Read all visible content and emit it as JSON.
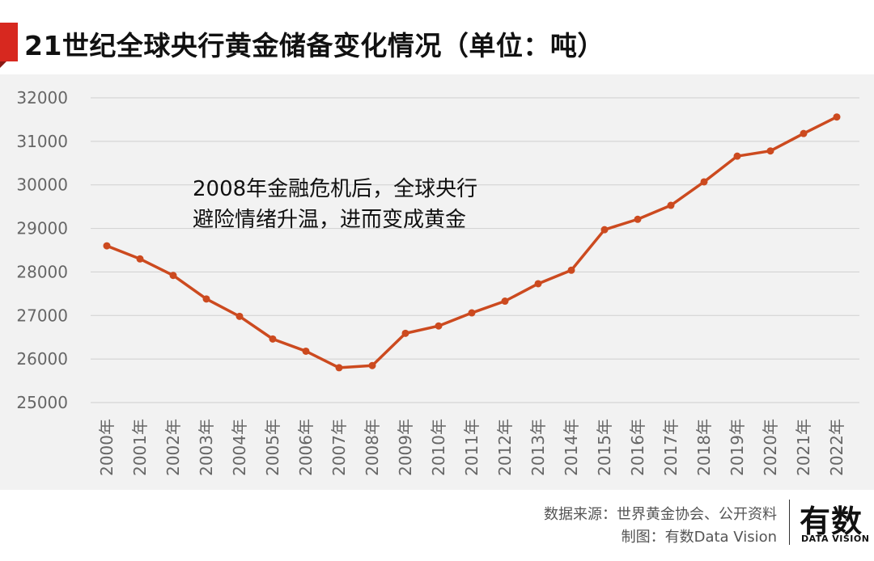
{
  "title": "21世纪全球央行黄金储备变化情况（单位：吨）",
  "annotation": {
    "line1": "2008年金融危机后，全球央行",
    "line2": "避险情绪升温，进而变成黄金"
  },
  "footer": {
    "source": "数据来源：世界黄金协会、公开资料",
    "maker": "制图：有数Data Vision"
  },
  "logo": {
    "main": "有数",
    "sub": "DATA VISION"
  },
  "colors": {
    "line": "#cc4a1f",
    "accent": "#d7281f",
    "panel": "#f2f2f2",
    "grid": "#cfcfcf",
    "tick": "#666666"
  },
  "chart_data": {
    "type": "line",
    "categories": [
      "2000年",
      "2001年",
      "2002年",
      "2003年",
      "2004年",
      "2005年",
      "2006年",
      "2007年",
      "2008年",
      "2009年",
      "2010年",
      "2011年",
      "2012年",
      "2013年",
      "2014年",
      "2015年",
      "2016年",
      "2017年",
      "2018年",
      "2019年",
      "2020年",
      "2021年",
      "2022年"
    ],
    "series": [
      {
        "values": [
          28600,
          28300,
          27920,
          27380,
          26980,
          26460,
          26180,
          25800,
          25850,
          26590,
          26760,
          27060,
          27330,
          27730,
          28040,
          28970,
          29210,
          29530,
          30070,
          30660,
          30780,
          31180,
          31560
        ]
      }
    ],
    "yticks": [
      25000,
      26000,
      27000,
      28000,
      29000,
      30000,
      31000,
      32000
    ],
    "ylim": [
      25000,
      32000
    ],
    "grid": true,
    "legend": "none"
  }
}
